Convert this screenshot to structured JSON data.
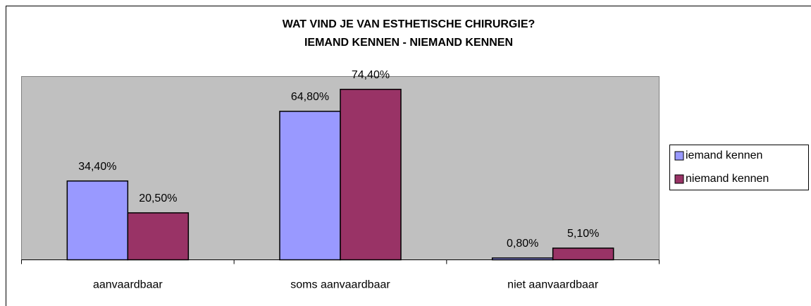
{
  "chart_data": {
    "type": "bar",
    "title": "WAT VIND JE VAN ESTHETISCHE CHIRURGIE?",
    "subtitle": "IEMAND KENNEN - NIEMAND KENNEN",
    "categories": [
      "aanvaardbaar",
      "soms aanvaardbaar",
      "niet aanvaardbaar"
    ],
    "series": [
      {
        "name": "iemand kennen",
        "color": "#9999ff",
        "values": [
          34.4,
          64.8,
          0.8
        ],
        "value_labels": [
          "34,40%",
          "64,80%",
          "0,80%"
        ]
      },
      {
        "name": "niemand kennen",
        "color": "#993366",
        "values": [
          20.5,
          74.4,
          5.1
        ],
        "value_labels": [
          "20,50%",
          "74,40%",
          "5,10%"
        ]
      }
    ],
    "ylim": [
      0,
      80
    ],
    "grid": false,
    "legend": "right"
  }
}
